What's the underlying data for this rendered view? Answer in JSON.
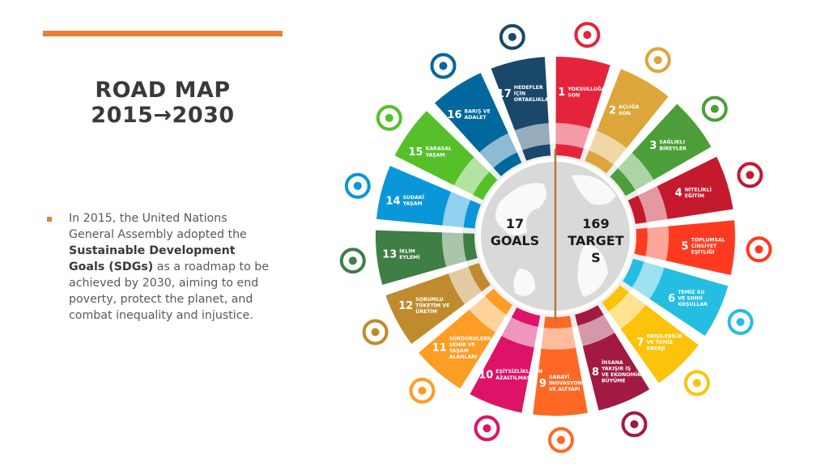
{
  "title": {
    "line1": "ROAD MAP",
    "line2": "2015→2030"
  },
  "body": {
    "intro": "In 2015, the United Nations General Assembly adopted the ",
    "bold": "Sustainable Development Goals (SDGs)",
    "rest": " as a roadmap to be achieved by 2030, aiming to end poverty, protect the planet, and combat inequality and injustice."
  },
  "center": {
    "left": [
      "17",
      "GOALS"
    ],
    "right": [
      "169",
      "TARGET",
      "S"
    ]
  },
  "goals": [
    {
      "n": "1",
      "label": [
        "YOKSULLUĞA",
        "SON"
      ],
      "color": "#E5243B",
      "icon": "family-icon"
    },
    {
      "n": "2",
      "label": [
        "AÇLIĞA",
        "SON"
      ],
      "color": "#DDA63A",
      "icon": "food-bowl-icon"
    },
    {
      "n": "3",
      "label": [
        "SAĞLIKLI",
        "BİREYLER"
      ],
      "color": "#4C9F38",
      "icon": "heartbeat-icon"
    },
    {
      "n": "4",
      "label": [
        "NİTELİKLİ",
        "EĞİTİM"
      ],
      "color": "#C5192D",
      "icon": "book-icon"
    },
    {
      "n": "5",
      "label": [
        "TOPLUMSAL",
        "CİNSİYET",
        "EŞİTLİĞİ"
      ],
      "color": "#FF3A21",
      "icon": "gender-icon"
    },
    {
      "n": "6",
      "label": [
        "TEMİZ SU",
        "VE SIHHİ",
        "KOŞULLAR"
      ],
      "color": "#26BDE2",
      "icon": "water-icon"
    },
    {
      "n": "7",
      "label": [
        "ERİŞİLEBİLİR",
        "VE TEMİZ",
        "ENERJİ"
      ],
      "color": "#FCC30B",
      "icon": "sun-power-icon"
    },
    {
      "n": "8",
      "label": [
        "İNSANA",
        "YAKIŞIR İŞ",
        "VE EKONOMİK",
        "BÜYÜME"
      ],
      "color": "#A21942",
      "icon": "growth-chart-icon"
    },
    {
      "n": "9",
      "label": [
        "SANAYİ",
        "İNOVASYON",
        "VE ALTYAPI"
      ],
      "color": "#FD6925",
      "icon": "cubes-icon"
    },
    {
      "n": "10",
      "label": [
        "EŞİTSİZLİKLERİN",
        "AZALTILMASI"
      ],
      "color": "#DD1367",
      "icon": "equality-icon"
    },
    {
      "n": "11",
      "label": [
        "SÜRDÜRÜLEBİLİR",
        "ŞEHİR VE",
        "YAŞAM",
        "ALANLARI"
      ],
      "color": "#FD9D24",
      "icon": "city-icon"
    },
    {
      "n": "12",
      "label": [
        "SORUMLU",
        "TÜKETİM VE",
        "ÜRETİM"
      ],
      "color": "#BF8B2E",
      "icon": "infinity-icon"
    },
    {
      "n": "13",
      "label": [
        "İKLİM",
        "EYLEMİ"
      ],
      "color": "#3F7E44",
      "icon": "eye-globe-icon"
    },
    {
      "n": "14",
      "label": [
        "SUDAKİ",
        "YAŞAM"
      ],
      "color": "#0A97D9",
      "icon": "fish-icon"
    },
    {
      "n": "15",
      "label": [
        "KARASAL",
        "YAŞAM"
      ],
      "color": "#56C02B",
      "icon": "tree-icon"
    },
    {
      "n": "16",
      "label": [
        "BARIŞ VE",
        "ADALET"
      ],
      "color": "#00689D",
      "icon": "dove-icon"
    },
    {
      "n": "17",
      "label": [
        "HEDEFLER",
        "İÇİN",
        "ORTAKLIKLAR"
      ],
      "color": "#19486A",
      "icon": "rings-icon"
    }
  ],
  "colors": {
    "accent": "#ED7D31",
    "title": "#3a3a3a",
    "body": "#595959",
    "divider": "#B07A3A",
    "globe": "#D9D9D9"
  }
}
